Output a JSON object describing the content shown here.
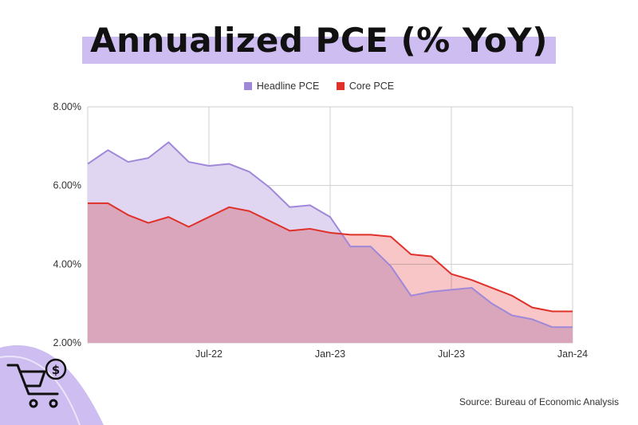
{
  "title": "Annualized PCE (% YoY)",
  "source": "Source: Bureau of Economic Analysis",
  "colors": {
    "headline_line": "#a088d8",
    "headline_fill": "#e1d6f2",
    "core_line": "#e0302a",
    "core_fill": "#f7bcbc",
    "grid": "#cfcfcf",
    "title_highlight": "#cdbdf0"
  },
  "icon": "shopping-cart-dollar-icon",
  "chart_data": {
    "type": "area",
    "title": "Annualized PCE (% YoY)",
    "xlabel": "",
    "ylabel": "",
    "ylim": [
      2,
      8
    ],
    "yticks": [
      2,
      4,
      6,
      8
    ],
    "ytick_labels": [
      "2.00%",
      "4.00%",
      "6.00%",
      "8.00%"
    ],
    "grid": true,
    "legend_position": "top-center",
    "x": [
      "Jan-22",
      "Feb-22",
      "Mar-22",
      "Apr-22",
      "May-22",
      "Jun-22",
      "Jul-22",
      "Aug-22",
      "Sep-22",
      "Oct-22",
      "Nov-22",
      "Dec-22",
      "Jan-23",
      "Feb-23",
      "Mar-23",
      "Apr-23",
      "May-23",
      "Jun-23",
      "Jul-23",
      "Aug-23",
      "Sep-23",
      "Oct-23",
      "Nov-23",
      "Dec-23",
      "Jan-24"
    ],
    "xtick_labels": [
      {
        "index": 6,
        "label": "Jul-22"
      },
      {
        "index": 12,
        "label": "Jan-23"
      },
      {
        "index": 18,
        "label": "Jul-23"
      },
      {
        "index": 24,
        "label": "Jan-24"
      }
    ],
    "series": [
      {
        "name": "Headline PCE",
        "values": [
          6.55,
          6.9,
          6.6,
          6.7,
          7.1,
          6.6,
          6.5,
          6.55,
          6.35,
          5.95,
          5.45,
          5.5,
          5.2,
          4.45,
          4.45,
          3.95,
          3.2,
          3.3,
          3.35,
          3.4,
          3.0,
          2.7,
          2.6,
          2.4,
          2.4
        ]
      },
      {
        "name": "Core PCE",
        "values": [
          5.55,
          5.55,
          5.25,
          5.05,
          5.2,
          4.95,
          5.2,
          5.45,
          5.35,
          5.1,
          4.85,
          4.9,
          4.8,
          4.75,
          4.75,
          4.7,
          4.25,
          4.2,
          3.75,
          3.6,
          3.4,
          3.2,
          2.9,
          2.8,
          2.8
        ]
      }
    ]
  }
}
